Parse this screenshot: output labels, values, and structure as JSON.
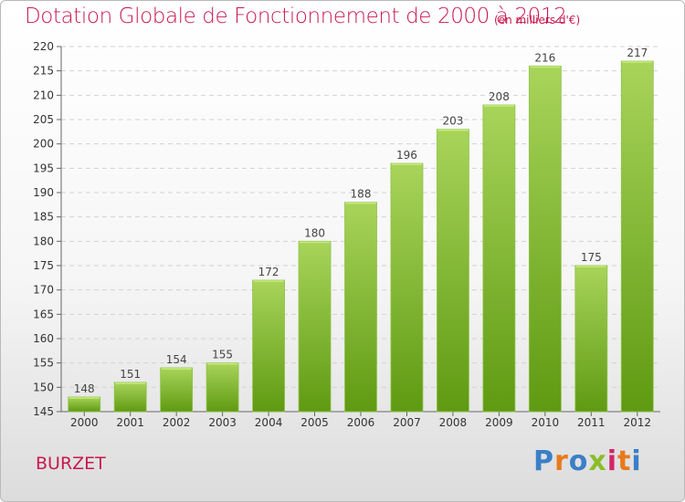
{
  "chart_data": {
    "type": "bar",
    "title": "Dotation Globale de Fonctionnement de 2000 à 2012",
    "subtitle": "(en milliers d'€)",
    "categories": [
      "2000",
      "2001",
      "2002",
      "2003",
      "2004",
      "2005",
      "2006",
      "2007",
      "2008",
      "2009",
      "2010",
      "2011",
      "2012"
    ],
    "values": [
      148,
      151,
      154,
      155,
      172,
      180,
      188,
      196,
      203,
      208,
      216,
      175,
      217
    ],
    "ylim": [
      145,
      220
    ],
    "ytick_step": 5,
    "grid": true,
    "bar_color_top": "#a8d45a",
    "bar_color_bottom": "#5f9a12"
  },
  "footer": {
    "commune": "BURZET",
    "logo": {
      "letters": [
        "P",
        "r",
        "o",
        "x",
        "i",
        "t",
        "i"
      ],
      "colors": [
        "#3a7fc7",
        "#e87a1c",
        "#3a7fc7",
        "#8bbd2a",
        "#d4256a",
        "#e87a1c",
        "#3a7fc7"
      ]
    }
  }
}
